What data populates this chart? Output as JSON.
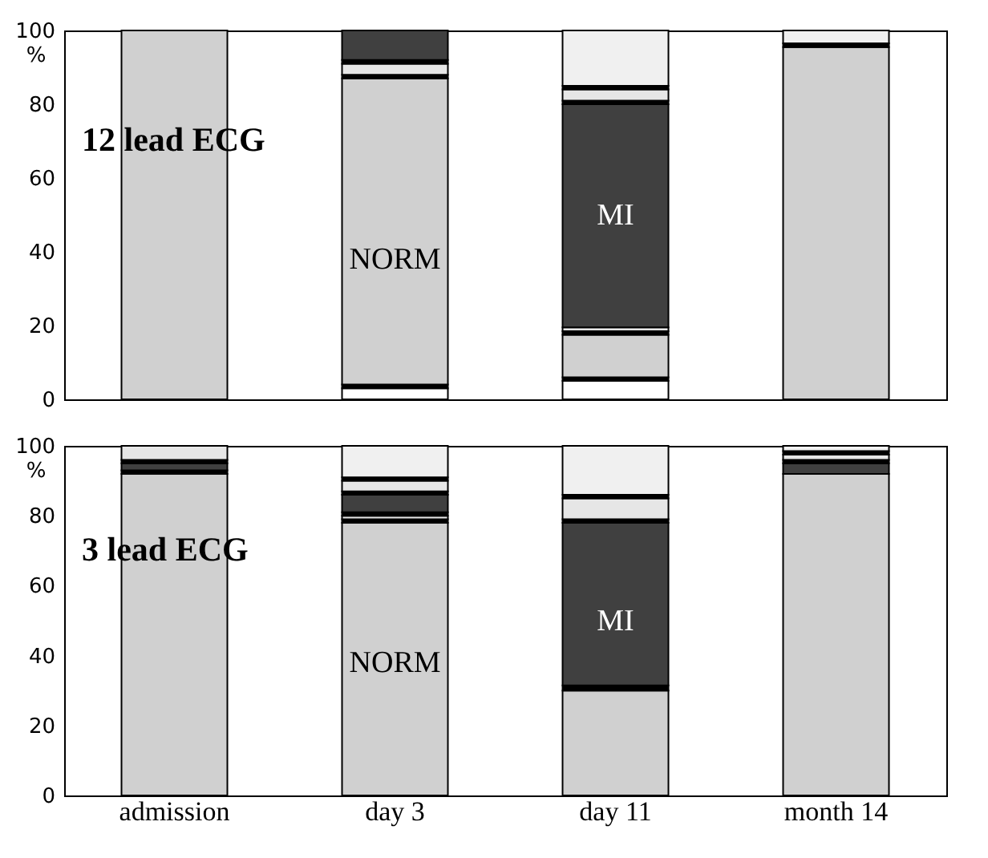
{
  "chart_data": [
    {
      "type": "bar",
      "stacked": true,
      "categories": [
        "admission",
        "day 3",
        "day 11",
        "month 14"
      ],
      "ylabel": "%",
      "ylim": [
        0,
        100
      ],
      "yticks": [
        0,
        20,
        40,
        60,
        80,
        100
      ],
      "tick_labels": "y",
      "legend": false,
      "grid": false,
      "series": [
        {
          "color": "#ffffff",
          "values": [
            null,
            3,
            5,
            null
          ]
        },
        {
          "color": "#000000",
          "values": [
            null,
            1,
            1,
            null
          ]
        },
        {
          "color": "#d0d0d0",
          "values": [
            100,
            83,
            11.5,
            95.5
          ]
        },
        {
          "color": "#000000",
          "values": [
            null,
            1,
            1,
            1
          ]
        },
        {
          "color": "#e6e6e6",
          "values": [
            null,
            3,
            1,
            null
          ]
        },
        {
          "color": "#000000",
          "values": [
            null,
            1,
            null,
            null
          ]
        },
        {
          "color": "#404040",
          "values": [
            null,
            8,
            60.5,
            null
          ]
        },
        {
          "color": "#000000",
          "values": [
            null,
            null,
            1,
            null
          ]
        },
        {
          "color": "#e6e6e6",
          "values": [
            null,
            null,
            3,
            null
          ]
        },
        {
          "color": "#000000",
          "values": [
            null,
            null,
            1,
            null
          ]
        },
        {
          "color": "#f0f0f0",
          "values": [
            null,
            null,
            15,
            3.5
          ]
        }
      ],
      "annotations": [
        "12 lead ECG",
        "NORM",
        "MI"
      ]
    },
    {
      "type": "bar",
      "stacked": true,
      "categories": [
        "admission",
        "day 3",
        "day 11",
        "month 14"
      ],
      "ylabel": "%",
      "ylim": [
        0,
        100
      ],
      "yticks": [
        0,
        20,
        40,
        60,
        80,
        100
      ],
      "legend": false,
      "grid": false,
      "series": [
        {
          "color": "#d0d0d0",
          "values": [
            92,
            78,
            30,
            92
          ]
        },
        {
          "color": "#000000",
          "values": [
            1,
            1,
            1.5,
            null
          ]
        },
        {
          "color": "#e6e6e6",
          "values": [
            null,
            1,
            null,
            null
          ]
        },
        {
          "color": "#000000",
          "values": [
            null,
            1,
            null,
            null
          ]
        },
        {
          "color": "#404040",
          "values": [
            2,
            5,
            46.5,
            3
          ]
        },
        {
          "color": "#000000",
          "values": [
            1,
            1,
            1,
            1
          ]
        },
        {
          "color": "#e6e6e6",
          "values": [
            4,
            3,
            6,
            1.5
          ]
        },
        {
          "color": "#000000",
          "values": [
            null,
            1,
            1,
            1
          ]
        },
        {
          "color": "#f0f0f0",
          "values": [
            null,
            9,
            14,
            1.5
          ]
        }
      ],
      "annotations": [
        "3 lead ECG",
        "NORM",
        "MI"
      ]
    }
  ]
}
